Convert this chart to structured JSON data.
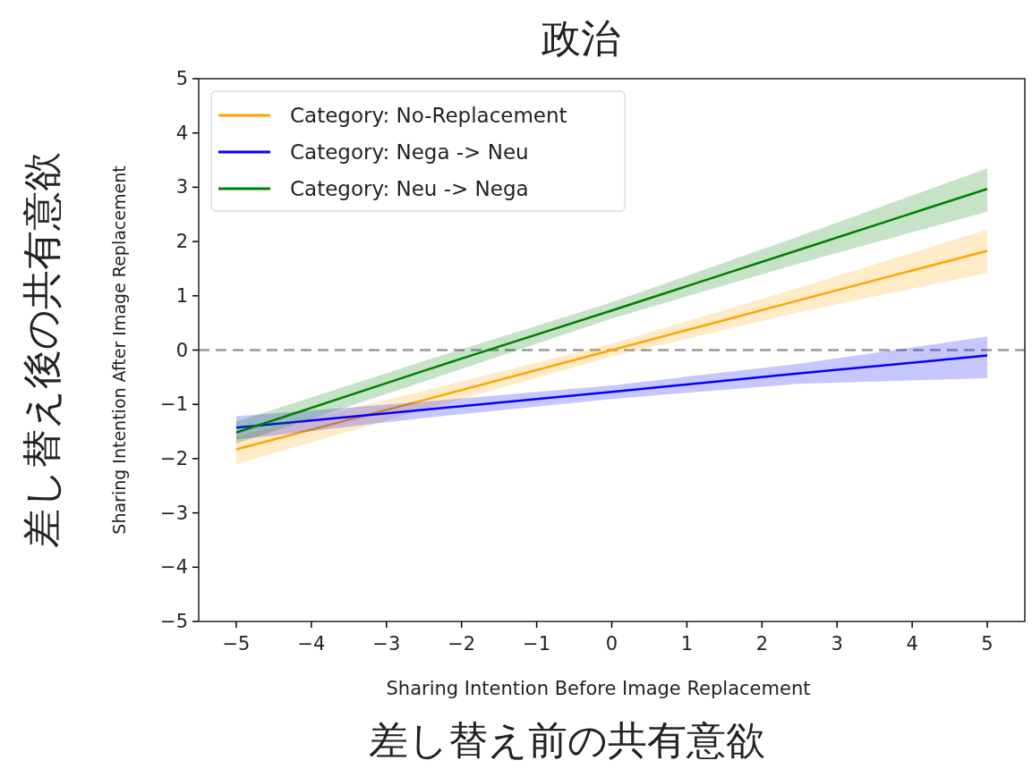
{
  "chart_data": {
    "type": "line",
    "title": "政治",
    "xlabel": "Sharing Intention Before Image Replacement",
    "ylabel": "Sharing Intention After Image Replacement",
    "annotations": [
      "差し替え前の共有意欲",
      "差し替え後の共有意欲"
    ],
    "x": [
      -5,
      -2.5,
      0,
      2.5,
      5
    ],
    "series": [
      {
        "name": "Category: No-Replacement",
        "color": "#ffa500",
        "values": [
          -1.83,
          -0.92,
          0.0,
          0.92,
          1.83
        ],
        "lower": [
          -2.1,
          -1.1,
          -0.12,
          0.7,
          1.42
        ],
        "upper": [
          -1.58,
          -0.75,
          0.12,
          1.15,
          2.22
        ]
      },
      {
        "name": "Category: Nega -> Neu",
        "color": "#0000ff",
        "values": [
          -1.43,
          -1.1,
          -0.77,
          -0.43,
          -0.1
        ],
        "lower": [
          -1.65,
          -1.25,
          -0.9,
          -0.62,
          -0.52
        ],
        "upper": [
          -1.22,
          -0.95,
          -0.65,
          -0.25,
          0.25
        ]
      },
      {
        "name": "Category: Neu -> Nega",
        "color": "#008000",
        "values": [
          -1.52,
          -0.38,
          0.73,
          1.85,
          2.97
        ],
        "lower": [
          -1.72,
          -0.58,
          0.58,
          1.6,
          2.55
        ],
        "upper": [
          -1.32,
          -0.2,
          0.88,
          2.1,
          3.35
        ]
      }
    ],
    "xlim": [
      -5.5,
      5.5
    ],
    "ylim": [
      -5,
      5
    ],
    "xticks": [
      {
        "value": -5,
        "label": "−5"
      },
      {
        "value": -4,
        "label": "−4"
      },
      {
        "value": -3,
        "label": "−3"
      },
      {
        "value": -2,
        "label": "−2"
      },
      {
        "value": -1,
        "label": "−1"
      },
      0,
      1,
      2,
      3,
      4,
      5
    ],
    "yticks": [
      {
        "value": -5,
        "label": "−5"
      },
      {
        "value": -4,
        "label": "−4"
      },
      {
        "value": -3,
        "label": "−3"
      },
      {
        "value": -2,
        "label": "−2"
      },
      {
        "value": -1,
        "label": "−1"
      },
      0,
      1,
      2,
      3,
      4,
      5
    ],
    "ref_lines": [
      {
        "axis": "y",
        "value": 0,
        "color": "#999999",
        "line_style": "dashed"
      }
    ],
    "legend": "top left"
  }
}
